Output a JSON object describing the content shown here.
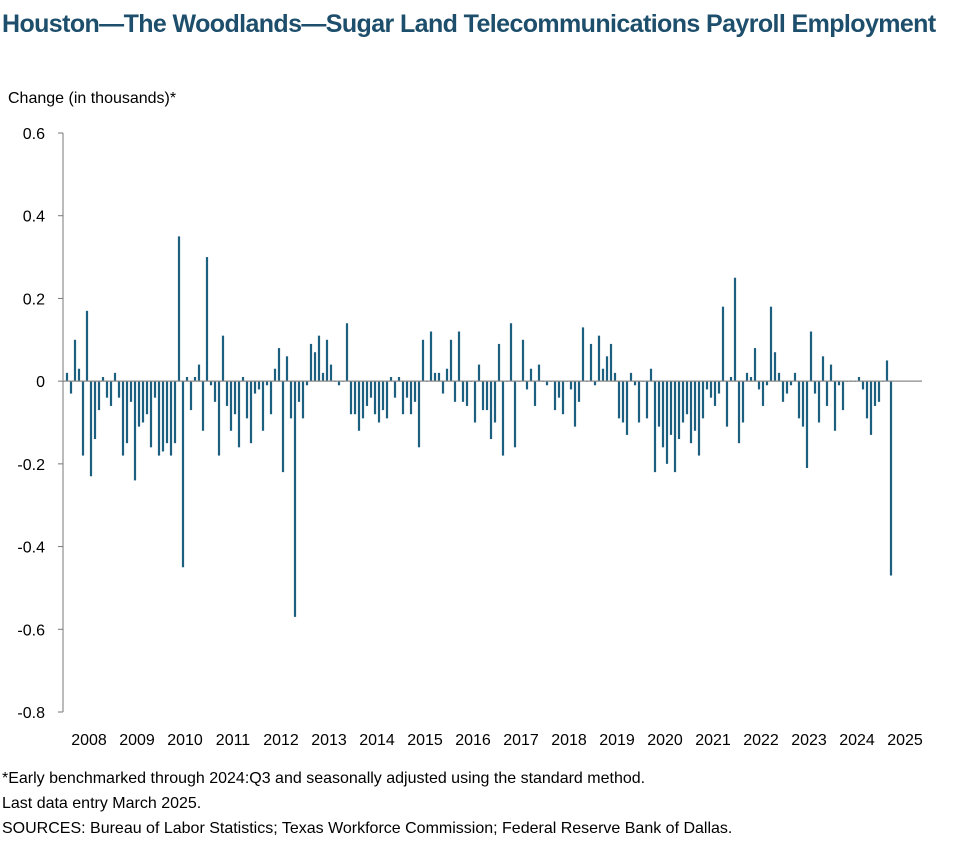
{
  "title": "Houston—The Woodlands—Sugar Land Telecommunications Payroll Employment",
  "footnotes": {
    "line1": "*Early benchmarked through 2024:Q3 and seasonally adjusted using the standard method.",
    "line2": "Last data entry March 2025.",
    "line3": "SOURCES: Bureau of Labor Statistics; Texas Workforce Commission; Federal Reserve Bank of Dallas."
  },
  "colors": {
    "bar": "#1d5f7e",
    "title": "#1d4e6b",
    "axis": "#777777",
    "zero_line": "#888888"
  },
  "chart_data": {
    "type": "bar",
    "ylabel": "Change (in thousands)*",
    "ylim": [
      -0.8,
      0.6
    ],
    "yticks": [
      "0.6",
      "0.4",
      "0.2",
      "0",
      "-0.2",
      "-0.4",
      "-0.6",
      "-0.8"
    ],
    "ytick_values": [
      0.6,
      0.4,
      0.2,
      0,
      -0.2,
      -0.4,
      -0.6,
      -0.8
    ],
    "xtick_labels": [
      "2008",
      "2009",
      "2010",
      "2011",
      "2012",
      "2013",
      "2014",
      "2015",
      "2016",
      "2017",
      "2018",
      "2019",
      "2020",
      "2021",
      "2022",
      "2023",
      "2024",
      "2025"
    ],
    "start": "2008-01",
    "end": "2025-03",
    "grid": false,
    "legend": "none",
    "values": [
      0.02,
      -0.03,
      0.1,
      0.03,
      -0.18,
      0.17,
      -0.23,
      -0.14,
      -0.07,
      0.01,
      -0.04,
      -0.06,
      0.02,
      -0.04,
      -0.18,
      -0.15,
      -0.05,
      -0.24,
      -0.11,
      -0.1,
      -0.08,
      -0.16,
      -0.04,
      -0.18,
      -0.17,
      -0.15,
      -0.18,
      -0.15,
      0.35,
      -0.45,
      0.01,
      -0.07,
      0.01,
      0.04,
      -0.12,
      0.3,
      -0.01,
      -0.05,
      -0.18,
      0.11,
      -0.06,
      -0.12,
      -0.08,
      -0.16,
      0.01,
      -0.09,
      -0.15,
      -0.03,
      -0.02,
      -0.12,
      -0.01,
      -0.08,
      0.03,
      0.08,
      -0.22,
      0.06,
      -0.09,
      -0.57,
      -0.05,
      -0.09,
      -0.01,
      0.09,
      0.07,
      0.11,
      0.02,
      0.1,
      0.04,
      0.0,
      -0.01,
      0.0,
      0.14,
      -0.08,
      -0.08,
      -0.12,
      -0.09,
      -0.06,
      -0.04,
      -0.08,
      -0.1,
      -0.07,
      -0.09,
      0.01,
      -0.04,
      0.01,
      -0.08,
      -0.04,
      -0.08,
      -0.05,
      -0.16,
      0.1,
      0.0,
      0.12,
      0.02,
      0.02,
      -0.03,
      0.03,
      0.1,
      -0.05,
      0.12,
      -0.05,
      -0.06,
      0.0,
      -0.1,
      0.04,
      -0.07,
      -0.07,
      -0.14,
      -0.1,
      0.09,
      -0.18,
      0.0,
      0.14,
      -0.16,
      0.0,
      0.1,
      -0.02,
      0.03,
      -0.06,
      0.04,
      0.0,
      -0.01,
      0.0,
      -0.07,
      -0.04,
      -0.08,
      0.0,
      -0.02,
      -0.11,
      -0.05,
      0.13,
      0.0,
      0.09,
      -0.01,
      0.11,
      0.03,
      0.06,
      0.09,
      0.02,
      -0.09,
      -0.1,
      -0.13,
      0.02,
      -0.01,
      -0.1,
      0.0,
      -0.09,
      0.03,
      -0.22,
      -0.11,
      -0.16,
      -0.2,
      -0.13,
      -0.22,
      -0.14,
      -0.1,
      -0.08,
      -0.15,
      -0.12,
      -0.18,
      -0.09,
      -0.02,
      -0.04,
      -0.06,
      -0.03,
      0.18,
      -0.11,
      0.01,
      0.25,
      -0.15,
      -0.1,
      0.02,
      0.01,
      0.08,
      -0.02,
      -0.06,
      -0.01,
      0.18,
      0.07,
      0.02,
      -0.05,
      -0.03,
      -0.01,
      0.02,
      -0.09,
      -0.11,
      -0.21,
      0.12,
      -0.03,
      -0.1,
      0.06,
      -0.06,
      0.04,
      -0.12,
      -0.01,
      -0.07,
      0.0,
      0.0,
      0.0,
      0.01,
      -0.02,
      -0.09,
      -0.13,
      -0.06,
      -0.05,
      0.0,
      0.05,
      -0.47,
      0.0,
      -0.01
    ]
  }
}
